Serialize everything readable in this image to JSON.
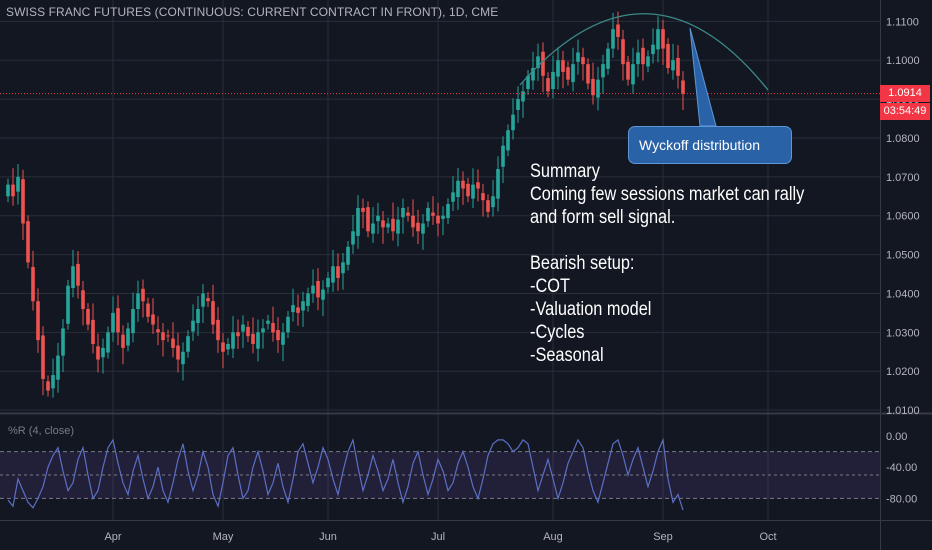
{
  "header": {
    "title": "SWISS FRANC FUTURES (CONTINUOUS: CURRENT CONTRACT IN FRONT), 1D, CME"
  },
  "price_badge": {
    "value": "1.0914",
    "color": "#f23645"
  },
  "timer_badge": {
    "value": "03:54:49",
    "color": "#f23645"
  },
  "annotations": {
    "callout": "Wyckoff distribution",
    "summary_lines": [
      "Summary",
      "Coming few sessions market can rally",
      "and form sell signal.",
      "",
      "Bearish setup:",
      "-COT",
      "-Valuation model",
      "-Cycles",
      "-Seasonal"
    ]
  },
  "indicator": {
    "label": "%R (4, close)",
    "ticks": [
      "0.00",
      "-40.00",
      "-80.00"
    ],
    "levels": [
      -20,
      -50,
      -80
    ],
    "range": [
      -100,
      0
    ],
    "color": "#5b6fc4",
    "band_color": "#7e57c2"
  },
  "colors": {
    "up": "#26a69a",
    "down": "#ef5350",
    "background": "#131722",
    "grid": "#2a2e39"
  },
  "chart_data": {
    "type": "candlestick",
    "title": "SWISS FRANC FUTURES (CONTINUOUS: CURRENT CONTRACT IN FRONT), 1D, CME",
    "y_ticks": [
      "1.1100",
      "1.1000",
      "1.0900",
      "1.0800",
      "1.0700",
      "1.0600",
      "1.0500",
      "1.0400",
      "1.0300",
      "1.0200",
      "1.0100"
    ],
    "y_values": [
      1.11,
      1.1,
      1.09,
      1.08,
      1.07,
      1.06,
      1.05,
      1.04,
      1.03,
      1.02,
      1.01
    ],
    "ylim": [
      1.0095,
      1.1155
    ],
    "x_labels": [
      {
        "label": "Apr",
        "index": 21
      },
      {
        "label": "May",
        "index": 43
      },
      {
        "label": "Jun",
        "index": 64
      },
      {
        "label": "Jul",
        "index": 86
      },
      {
        "label": "Aug",
        "index": 109
      },
      {
        "label": "Sep",
        "index": 131
      },
      {
        "label": "Oct",
        "index": 152
      }
    ],
    "last_price": 1.0914,
    "closes": [
      1.068,
      1.065,
      1.07,
      1.058,
      1.048,
      1.038,
      1.028,
      1.018,
      1.015,
      1.019,
      1.024,
      1.031,
      1.042,
      1.047,
      1.042,
      1.036,
      1.032,
      1.027,
      1.023,
      1.026,
      1.03,
      1.035,
      1.03,
      1.026,
      1.031,
      1.036,
      1.04,
      1.038,
      1.034,
      1.032,
      1.03,
      1.028,
      1.029,
      1.026,
      1.023,
      1.025,
      1.029,
      1.033,
      1.036,
      1.04,
      1.038,
      1.032,
      1.028,
      1.025,
      1.027,
      1.03,
      1.029,
      1.032,
      1.029,
      1.027,
      1.03,
      1.031,
      1.033,
      1.03,
      1.028,
      1.03,
      1.034,
      1.037,
      1.035,
      1.038,
      1.04,
      1.042,
      1.039,
      1.041,
      1.044,
      1.047,
      1.044,
      1.048,
      1.052,
      1.056,
      1.062,
      1.061,
      1.056,
      1.058,
      1.06,
      1.057,
      1.058,
      1.056,
      1.059,
      1.062,
      1.06,
      1.057,
      1.056,
      1.058,
      1.062,
      1.06,
      1.058,
      1.06,
      1.063,
      1.066,
      1.069,
      1.067,
      1.065,
      1.068,
      1.067,
      1.064,
      1.061,
      1.065,
      1.072,
      1.078,
      1.082,
      1.086,
      1.09,
      1.092,
      1.096,
      1.098,
      1.101,
      1.096,
      1.092,
      1.097,
      1.1,
      1.097,
      1.095,
      1.099,
      1.102,
      1.099,
      1.094,
      1.091,
      1.095,
      1.099,
      1.103,
      1.108,
      1.106,
      1.099,
      1.095,
      1.099,
      1.102,
      1.099,
      1.101,
      1.104,
      1.108,
      1.103,
      1.098,
      1.1,
      1.096,
      1.0914
    ],
    "williams_r": [
      -82,
      -90,
      -55,
      -70,
      -85,
      -92,
      -80,
      -65,
      -40,
      -25,
      -15,
      -45,
      -70,
      -60,
      -30,
      -15,
      -50,
      -80,
      -70,
      -40,
      -15,
      -5,
      -35,
      -60,
      -75,
      -45,
      -25,
      -55,
      -80,
      -65,
      -40,
      -70,
      -85,
      -60,
      -30,
      -10,
      -45,
      -70,
      -50,
      -20,
      -40,
      -75,
      -90,
      -60,
      -25,
      -15,
      -50,
      -80,
      -70,
      -40,
      -20,
      -45,
      -75,
      -60,
      -35,
      -65,
      -85,
      -55,
      -20,
      -10,
      -35,
      -60,
      -40,
      -15,
      -30,
      -55,
      -75,
      -45,
      -20,
      -5,
      -40,
      -70,
      -50,
      -25,
      -45,
      -70,
      -55,
      -30,
      -60,
      -85,
      -65,
      -35,
      -20,
      -50,
      -75,
      -55,
      -30,
      -45,
      -70,
      -60,
      -35,
      -20,
      -40,
      -65,
      -80,
      -55,
      -25,
      -10,
      -5,
      -5,
      -10,
      -20,
      -15,
      -5,
      -10,
      -40,
      -70,
      -50,
      -30,
      -55,
      -80,
      -60,
      -35,
      -20,
      -5,
      -15,
      -45,
      -70,
      -85,
      -60,
      -35,
      -10,
      -5,
      -25,
      -50,
      -30,
      -15,
      -40,
      -65,
      -45,
      -20,
      -5,
      -55,
      -85,
      -75,
      -95
    ]
  }
}
